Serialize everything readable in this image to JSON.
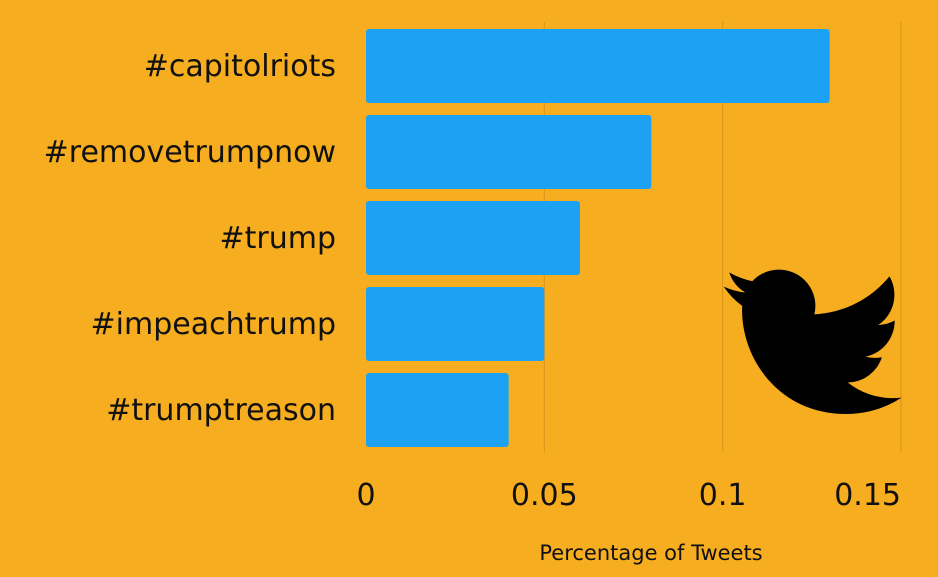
{
  "chart_data": {
    "type": "bar",
    "orientation": "horizontal",
    "categories": [
      "#capitolriots",
      "#removetrumpnow",
      "#trump",
      "#impeachtrump",
      "#trumptreason"
    ],
    "values": [
      0.13,
      0.08,
      0.06,
      0.05,
      0.04
    ],
    "xlabel": "Percentage of Tweets",
    "xlim": [
      0,
      0.15
    ],
    "xticks": [
      "0",
      "0.05",
      "0.1",
      "0.15"
    ],
    "grid": "vertical",
    "colors": {
      "background": "#f6ad1f",
      "bar": "#1da1f2",
      "gridline": "#d9941a",
      "text": "#111111",
      "logo": "#000000"
    }
  },
  "logo": {
    "icon": "twitter-bird-icon"
  }
}
